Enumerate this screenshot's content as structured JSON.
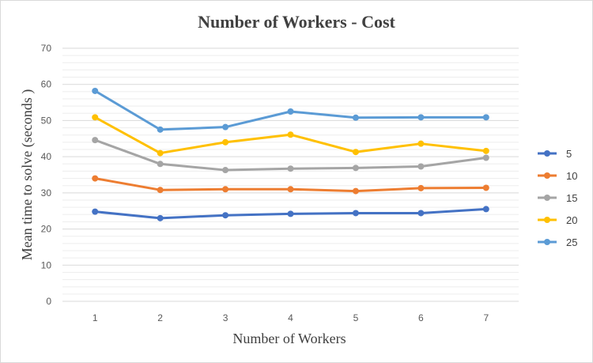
{
  "chart_data": {
    "type": "line",
    "title": "Number of Workers - Cost",
    "xlabel": "Number of Workers",
    "ylabel": "Mean time to solve (seconds )",
    "categories": [
      "1",
      "2",
      "3",
      "4",
      "5",
      "6",
      "7"
    ],
    "ylim": [
      0,
      70
    ],
    "yticks": [
      "0",
      "10",
      "20",
      "30",
      "40",
      "50",
      "60",
      "70"
    ],
    "grid": true,
    "legend_position": "right",
    "series": [
      {
        "name": "5",
        "color": "#4472C4",
        "values": [
          24.8,
          23.0,
          23.8,
          24.2,
          24.4,
          24.4,
          25.5
        ]
      },
      {
        "name": "10",
        "color": "#ED7D31",
        "values": [
          34.0,
          30.8,
          31.0,
          31.0,
          30.5,
          31.3,
          31.4
        ]
      },
      {
        "name": "15",
        "color": "#A5A5A5",
        "values": [
          44.6,
          38.0,
          36.3,
          36.7,
          36.9,
          37.3,
          39.7
        ]
      },
      {
        "name": "20",
        "color": "#FFC000",
        "values": [
          50.9,
          41.0,
          44.0,
          46.1,
          41.3,
          43.6,
          41.6
        ]
      },
      {
        "name": "25",
        "color": "#5B9BD5",
        "values": [
          58.2,
          47.5,
          48.2,
          52.5,
          50.8,
          50.9,
          50.9
        ]
      }
    ]
  }
}
